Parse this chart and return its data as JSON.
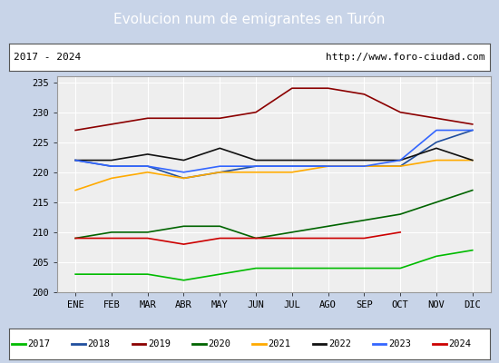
{
  "title": "Evolucion num de emigrantes en Turón",
  "title_bgcolor": "#5b8ec9",
  "title_color": "white",
  "subtitle_left": "2017 - 2024",
  "subtitle_right": "http://www.foro-ciudad.com",
  "months": [
    "ENE",
    "FEB",
    "MAR",
    "ABR",
    "MAY",
    "JUN",
    "JUL",
    "AGO",
    "SEP",
    "OCT",
    "NOV",
    "DIC"
  ],
  "ylim": [
    200,
    236
  ],
  "yticks": [
    200,
    205,
    210,
    215,
    220,
    225,
    230,
    235
  ],
  "series": {
    "2017": {
      "color": "#00bb00",
      "values": [
        203,
        203,
        203,
        202,
        203,
        204,
        204,
        204,
        204,
        204,
        206,
        207
      ]
    },
    "2018": {
      "color": "#1f4e9e",
      "values": [
        222,
        221,
        221,
        219,
        220,
        221,
        221,
        221,
        221,
        221,
        225,
        227
      ]
    },
    "2019": {
      "color": "#8b0000",
      "values": [
        227,
        228,
        229,
        229,
        229,
        230,
        234,
        234,
        233,
        230,
        229,
        228
      ]
    },
    "2020": {
      "color": "#006400",
      "values": [
        209,
        210,
        210,
        211,
        211,
        209,
        210,
        211,
        212,
        213,
        215,
        217
      ]
    },
    "2021": {
      "color": "#ffaa00",
      "values": [
        217,
        219,
        220,
        219,
        220,
        220,
        220,
        221,
        221,
        221,
        222,
        222
      ]
    },
    "2022": {
      "color": "#111111",
      "values": [
        222,
        222,
        223,
        222,
        224,
        222,
        222,
        222,
        222,
        222,
        224,
        222
      ]
    },
    "2023": {
      "color": "#3366ff",
      "values": [
        222,
        221,
        221,
        220,
        221,
        221,
        221,
        221,
        221,
        222,
        227,
        227
      ]
    },
    "2024": {
      "color": "#cc0000",
      "values": [
        209,
        209,
        209,
        208,
        209,
        209,
        209,
        209,
        209,
        210,
        null,
        null
      ]
    }
  },
  "legend_order": [
    "2017",
    "2018",
    "2019",
    "2020",
    "2021",
    "2022",
    "2023",
    "2024"
  ],
  "bgcolor_plot": "#eeeeee",
  "bgcolor_outer": "#c8d4e8",
  "grid_color": "#ffffff"
}
